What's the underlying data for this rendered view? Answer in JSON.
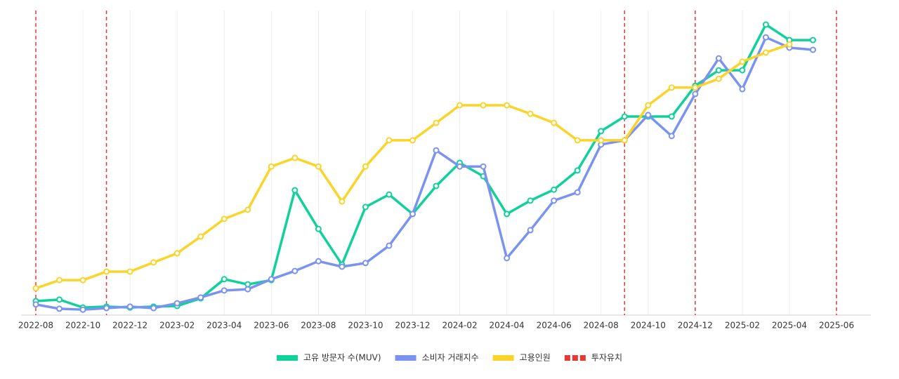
{
  "chart_data": {
    "type": "line",
    "categories": [
      "2022-08",
      null,
      "2022-10",
      null,
      "2022-12",
      null,
      "2023-02",
      null,
      "2023-04",
      null,
      "2023-06",
      null,
      "2023-08",
      null,
      "2023-10",
      null,
      "2023-12",
      null,
      "2024-02",
      null,
      "2024-04",
      null,
      "2024-06",
      null,
      "2024-08",
      null,
      "2024-10",
      null,
      "2024-12",
      null,
      "2025-02",
      null,
      "2025-04",
      null,
      "2025-06"
    ],
    "ylim": [
      0,
      100
    ],
    "grid": true,
    "legend": "bottom",
    "series": [
      {
        "name": "고유 방문자 수(MUV)",
        "color": "#10d19a",
        "values": [
          4.6,
          5.1,
          2.5,
          2.8,
          2.5,
          2.8,
          3.0,
          5.5,
          11.8,
          10.1,
          11.5,
          41.0,
          28.3,
          16.6,
          35.5,
          39.6,
          33.2,
          42.4,
          50.0,
          45.6,
          33.2,
          37.6,
          41.2,
          47.5,
          60.4,
          65.2,
          65.2,
          65.2,
          75.3,
          80.4,
          80.4,
          95.4,
          90.3,
          90.3,
          null
        ]
      },
      {
        "name": "소비자 거래지수",
        "color": "#7b93f0",
        "values": [
          3.5,
          2.1,
          1.8,
          2.3,
          2.8,
          2.3,
          3.9,
          5.8,
          8.1,
          8.5,
          11.8,
          14.5,
          17.7,
          15.9,
          17.1,
          22.8,
          33.2,
          54.1,
          48.8,
          48.8,
          18.7,
          27.9,
          37.6,
          40.3,
          56.0,
          57.4,
          65.7,
          58.8,
          72.6,
          84.3,
          74.2,
          91.2,
          87.8,
          87.1,
          null
        ]
      },
      {
        "name": "고용인원",
        "color": "#fbd42a",
        "values": [
          8.8,
          11.5,
          11.5,
          14.3,
          14.3,
          17.3,
          20.3,
          25.8,
          31.6,
          34.6,
          48.8,
          51.6,
          48.8,
          37.3,
          48.8,
          57.4,
          57.4,
          63.1,
          68.9,
          68.9,
          68.9,
          66.1,
          63.1,
          57.4,
          57.4,
          57.4,
          68.9,
          74.7,
          74.7,
          77.6,
          83.2,
          86.2,
          88.9,
          null,
          null
        ]
      }
    ],
    "investment": {
      "name": "투자유치",
      "color": "#e53935",
      "at": [
        0,
        3,
        25,
        28,
        34
      ]
    }
  }
}
